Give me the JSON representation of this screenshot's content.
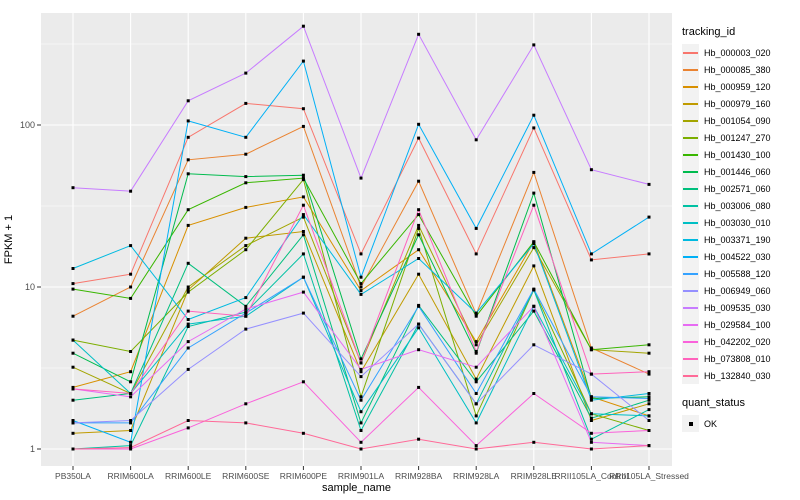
{
  "chart_data": {
    "type": "line",
    "title": "",
    "xlabel": "sample_name",
    "ylabel": "FPKM + 1",
    "y_scale": "log10",
    "y_ticks": [
      "1",
      "10",
      "100"
    ],
    "y_tick_values": [
      1,
      10,
      100
    ],
    "y_minor_tick_values": [
      3.162,
      31.62,
      316.2
    ],
    "ylim": [
      0.79,
      490
    ],
    "grid": true,
    "legend_position": "right",
    "categories": [
      "PB350LA",
      "RRIM600LA",
      "RRIM600LE",
      "RRIM600SE",
      "RRIM600PE",
      "RRIM901LA",
      "RRIM928BA",
      "RRIM928LA",
      "RRIM928LE",
      "RRII105LA_Control",
      "RRII105LA_Stressed"
    ],
    "legend_title": "tracking_id",
    "marker_legend": {
      "title": "quant_status",
      "items": [
        {
          "label": "OK",
          "shape": "black-square"
        }
      ]
    },
    "series": [
      {
        "name": "Hb_000003_020",
        "color": "#F8766D",
        "values": [
          10.5,
          12,
          84,
          136,
          126,
          16,
          83,
          16,
          96,
          14.7,
          16
        ]
      },
      {
        "name": "Hb_000085_380",
        "color": "#EA8331",
        "values": [
          6.6,
          10,
          61,
          66,
          98,
          10,
          45,
          6.8,
          51,
          4.2,
          2.9
        ]
      },
      {
        "name": "Hb_000959_120",
        "color": "#D89000",
        "values": [
          2.4,
          3,
          24,
          31,
          36,
          9.5,
          17,
          4.6,
          19,
          2.1,
          1.6
        ]
      },
      {
        "name": "Hb_000979_160",
        "color": "#C09B00",
        "values": [
          1.25,
          1.3,
          9.6,
          20,
          22,
          3,
          12,
          2.7,
          13.5,
          1.5,
          1.9
        ]
      },
      {
        "name": "Hb_001054_090",
        "color": "#A3A500",
        "values": [
          3.2,
          2.2,
          10,
          18,
          27,
          3.4,
          24,
          4.4,
          17.5,
          4.1,
          3.9
        ]
      },
      {
        "name": "Hb_001247_270",
        "color": "#7CAE00",
        "values": [
          4.7,
          4,
          9.3,
          17,
          46,
          2.1,
          23,
          1.6,
          9.6,
          1.65,
          1.3
        ]
      },
      {
        "name": "Hb_001430_100",
        "color": "#39B600",
        "values": [
          9.7,
          8.5,
          30,
          44,
          47,
          10.5,
          28,
          6.6,
          19,
          4.1,
          4.4
        ]
      },
      {
        "name": "Hb_001446_060",
        "color": "#00BB4E",
        "values": [
          3.9,
          2.6,
          50,
          48,
          49,
          3.6,
          21,
          3.9,
          38,
          2.05,
          2.1
        ]
      },
      {
        "name": "Hb_002571_060",
        "color": "#00BF7D",
        "values": [
          2,
          2.2,
          14,
          7.6,
          21,
          1.45,
          7.7,
          2.6,
          7.1,
          1.55,
          2
        ]
      },
      {
        "name": "Hb_003006_080",
        "color": "#00C1A3",
        "values": [
          1,
          1.05,
          5.7,
          7,
          16,
          1.3,
          5.9,
          1.9,
          9.6,
          1.15,
          1.75
        ]
      },
      {
        "name": "Hb_003030_010",
        "color": "#00BFC4",
        "values": [
          4.7,
          2.2,
          5.9,
          6.6,
          11.5,
          1.7,
          5.6,
          1.45,
          7.6,
          1.65,
          1.6
        ]
      },
      {
        "name": "Hb_003371_190",
        "color": "#00BAE0",
        "values": [
          13,
          18,
          6.3,
          8.6,
          28,
          9,
          15,
          6.9,
          18.5,
          2,
          2.2
        ]
      },
      {
        "name": "Hb_004522_030",
        "color": "#00B0F6",
        "values": [
          1.5,
          1.1,
          106,
          84,
          248,
          11.5,
          101,
          23,
          115,
          16,
          27
        ]
      },
      {
        "name": "Hb_005588_120",
        "color": "#35A2FF",
        "values": [
          1.45,
          1.45,
          4.2,
          6.9,
          11.5,
          2,
          7.6,
          2.2,
          9.7,
          2.1,
          2.05
        ]
      },
      {
        "name": "Hb_006949_060",
        "color": "#9590FF",
        "values": [
          1.45,
          1.5,
          3.1,
          5.5,
          6.9,
          2.8,
          5.9,
          1.9,
          4.4,
          2.9,
          1.5
        ]
      },
      {
        "name": "Hb_009535_030",
        "color": "#C77CFF",
        "values": [
          41,
          39,
          141,
          209,
          407,
          47,
          363,
          81,
          312,
          53,
          43
        ]
      },
      {
        "name": "Hb_029584_100",
        "color": "#E76BF3",
        "values": [
          2.35,
          2.1,
          4.6,
          7.3,
          9.3,
          3.1,
          4.1,
          3.2,
          7.6,
          1.1,
          1.05
        ]
      },
      {
        "name": "Hb_042202_020",
        "color": "#FA62DB",
        "values": [
          1,
          1,
          1.35,
          1.9,
          2.6,
          1.1,
          2.4,
          1.05,
          2.2,
          1.25,
          1.3
        ]
      },
      {
        "name": "Hb_073808_010",
        "color": "#FF62BC",
        "values": [
          2.35,
          2.2,
          7.1,
          6.6,
          32,
          3.4,
          30,
          4,
          32,
          2.9,
          3
        ]
      },
      {
        "name": "Hb_132840_030",
        "color": "#FF6A98",
        "values": [
          1,
          1.02,
          1.5,
          1.45,
          1.25,
          1,
          1.15,
          1,
          1.1,
          1,
          1.05
        ]
      }
    ]
  },
  "colors": {
    "page_bg": "#FFFFFF",
    "panel_bg": "#EBEBEB",
    "grid": "#FFFFFF",
    "axis_text": "#4D4D4D",
    "title_text": "#000000",
    "marker": "#000000",
    "legend_key_bg": "#F2F2F2"
  }
}
